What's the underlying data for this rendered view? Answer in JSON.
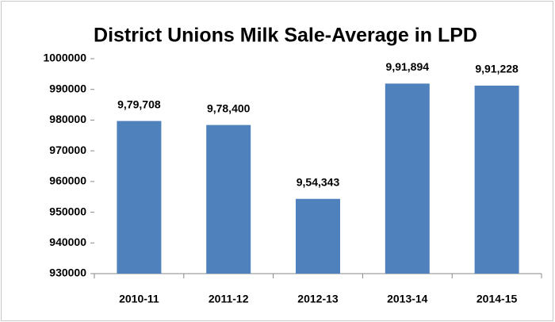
{
  "chart_data": {
    "type": "bar",
    "title": "District Unions Milk Sale-Average in LPD",
    "categories": [
      "2010-11",
      "2011-12",
      "2012-13",
      "2013-14",
      "2014-15"
    ],
    "values": [
      979708,
      978400,
      954343,
      991894,
      991228
    ],
    "value_labels": [
      "9,79,708",
      "9,78,400",
      "9,54,343",
      "9,91,894",
      "9,91,228"
    ],
    "color": "#4f81bd",
    "ylim": [
      930000,
      1000000
    ],
    "yticks": [
      930000,
      940000,
      950000,
      960000,
      970000,
      980000,
      990000,
      1000000
    ],
    "grid": false
  }
}
